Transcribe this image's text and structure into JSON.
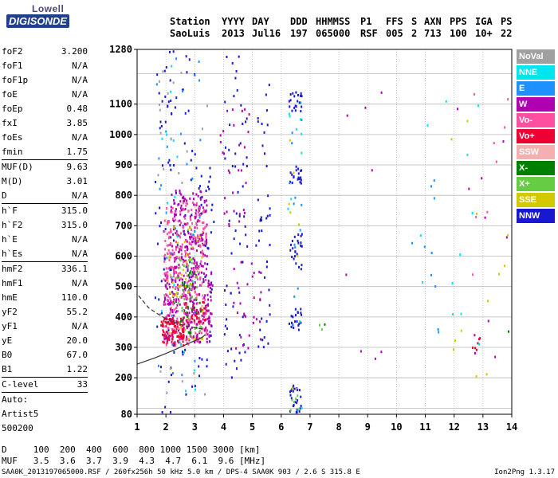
{
  "logo": {
    "brand": "Lowell",
    "product": "DIGISONDE"
  },
  "header": {
    "cols": [
      {
        "h": "Station",
        "v": "SaoLuis"
      },
      {
        "h": "YYYY",
        "v": "2013"
      },
      {
        "h": "DAY",
        "v": "Jul16"
      },
      {
        "h": "DDD",
        "v": "197"
      },
      {
        "h": "HHMMSS",
        "v": "065000"
      },
      {
        "h": "P1",
        "v": "RSF"
      },
      {
        "h": "FFS",
        "v": "005"
      },
      {
        "h": "S",
        "v": "2"
      },
      {
        "h": "AXN",
        "v": "713"
      },
      {
        "h": "PPS",
        "v": "100"
      },
      {
        "h": "IGA",
        "v": "10+"
      },
      {
        "h": "PS",
        "v": "22"
      }
    ]
  },
  "params": [
    {
      "label": "foF2",
      "value": "3.200"
    },
    {
      "label": "foF1",
      "value": "N/A"
    },
    {
      "label": "foF1p",
      "value": "N/A"
    },
    {
      "label": "foE",
      "value": "N/A"
    },
    {
      "label": "foEp",
      "value": "0.48"
    },
    {
      "label": "fxI",
      "value": "3.85"
    },
    {
      "label": "foEs",
      "value": "N/A"
    },
    {
      "label": "fmin",
      "value": "1.75"
    },
    {
      "sep": true
    },
    {
      "label": "MUF(D)",
      "value": "9.63"
    },
    {
      "label": "M(D)",
      "value": "3.01"
    },
    {
      "label": "D",
      "value": "N/A"
    },
    {
      "sep": true
    },
    {
      "label": "h`F",
      "value": "315.0"
    },
    {
      "label": "h`F2",
      "value": "315.0"
    },
    {
      "label": "h`E",
      "value": "N/A"
    },
    {
      "label": "h`Es",
      "value": "N/A"
    },
    {
      "sep": true
    },
    {
      "label": "hmF2",
      "value": "336.1"
    },
    {
      "label": "hmF1",
      "value": "N/A"
    },
    {
      "label": "hmE",
      "value": "110.0"
    },
    {
      "label": "yF2",
      "value": "55.2"
    },
    {
      "label": "yF1",
      "value": "N/A"
    },
    {
      "label": "yE",
      "value": "20.0"
    },
    {
      "label": "B0",
      "value": "67.0"
    },
    {
      "label": "B1",
      "value": "1.22"
    },
    {
      "sep": true
    },
    {
      "label": "C-level",
      "value": "33"
    },
    {
      "sep": true
    }
  ],
  "autoscaling": {
    "line1": "Auto:",
    "line2": "Artist5",
    "line3": "500200"
  },
  "legend": [
    {
      "label": "NoVal",
      "color": "#a0a0a0"
    },
    {
      "label": "NNE",
      "color": "#00e5ee"
    },
    {
      "label": "E",
      "color": "#1e90ff"
    },
    {
      "label": "W",
      "color": "#b000b0"
    },
    {
      "label": "Vo-",
      "color": "#ff4fa0"
    },
    {
      "label": "Vo+",
      "color": "#ee0033"
    },
    {
      "label": "SSW",
      "color": "#f4b0b0"
    },
    {
      "label": "X-",
      "color": "#008000"
    },
    {
      "label": "X+",
      "color": "#66cc44"
    },
    {
      "label": "SSE",
      "color": "#d6c800"
    },
    {
      "label": "NNW",
      "color": "#1818d0"
    }
  ],
  "muf_table": {
    "row1": "D     100  200  400  600  800 1000 1500 3000 [km]",
    "row2": "MUF   3.5  3.6  3.7  3.9  4.3  4.7  6.1  9.6 [MHz]"
  },
  "footer": {
    "left": "SAA0K_2013197065000.RSF / 260fx256h 50 kHz 5.0 km / DPS-4 SAA0K 903 / 2.6 S 315.8 E",
    "right": "Ion2Png 1.3.17"
  },
  "chart_data": {
    "type": "scatter",
    "title": "",
    "xlabel": "",
    "ylabel": "",
    "xlim": [
      1,
      14
    ],
    "ylim": [
      80,
      1280
    ],
    "xticks": [
      1,
      2,
      3,
      4,
      5,
      6,
      7,
      8,
      9,
      10,
      11,
      12,
      13,
      14
    ],
    "yticks": [
      80,
      200,
      300,
      400,
      500,
      600,
      700,
      800,
      900,
      1000,
      1100,
      1280
    ],
    "ygrid": [
      100,
      200,
      300,
      400,
      500,
      600,
      700,
      800,
      900,
      1000,
      1100,
      1200
    ],
    "grid": true,
    "legend_position": "right",
    "series": [
      {
        "name": "NNW",
        "kind": "cluster",
        "clusters": [
          {
            "x": [
              1.6,
              2.4
            ],
            "y": [
              80,
              1280
            ],
            "n": 70
          },
          {
            "x": [
              2.5,
              3.0
            ],
            "y": [
              140,
              1280
            ],
            "n": 40
          },
          {
            "x": [
              3.0,
              3.7
            ],
            "y": [
              180,
              900
            ],
            "n": 40
          },
          {
            "x": [
              4.0,
              4.8
            ],
            "y": [
              200,
              1280
            ],
            "n": 60
          },
          {
            "x": [
              5.1,
              5.6
            ],
            "y": [
              300,
              1200
            ],
            "n": 40
          },
          {
            "x": [
              6.25,
              6.7
            ],
            "y": [
              80,
              180
            ],
            "n": 25
          },
          {
            "x": [
              6.25,
              6.7
            ],
            "y": [
              360,
              430
            ],
            "n": 20
          },
          {
            "x": [
              6.25,
              6.7
            ],
            "y": [
              560,
              680
            ],
            "n": 25
          },
          {
            "x": [
              6.25,
              6.7
            ],
            "y": [
              840,
              900
            ],
            "n": 20
          },
          {
            "x": [
              6.25,
              6.7
            ],
            "y": [
              1080,
              1150
            ],
            "n": 20
          }
        ]
      },
      {
        "name": "W",
        "kind": "cluster",
        "clusters": [
          {
            "x": [
              1.9,
              3.6
            ],
            "y": [
              320,
              560
            ],
            "n": 260
          },
          {
            "x": [
              2.1,
              3.4
            ],
            "y": [
              560,
              820
            ],
            "n": 180
          },
          {
            "x": [
              3.8,
              4.9
            ],
            "y": [
              700,
              1100
            ],
            "n": 30
          },
          {
            "x": [
              4.3,
              5.3
            ],
            "y": [
              300,
              600
            ],
            "n": 30
          },
          {
            "x": [
              8.0,
              10.0
            ],
            "y": [
              250,
              1200
            ],
            "n": 8
          },
          {
            "x": [
              12.0,
              13.9
            ],
            "y": [
              250,
              1100
            ],
            "n": 10
          }
        ]
      },
      {
        "name": "Vo-",
        "kind": "cluster",
        "clusters": [
          {
            "x": [
              1.9,
              3.4
            ],
            "y": [
              310,
              780
            ],
            "n": 260
          },
          {
            "x": [
              12.5,
              13.9
            ],
            "y": [
              500,
              1150
            ],
            "n": 8
          }
        ]
      },
      {
        "name": "Vo+",
        "kind": "cluster",
        "clusters": [
          {
            "x": [
              1.8,
              2.6
            ],
            "y": [
              310,
              400
            ],
            "n": 90
          },
          {
            "x": [
              2.6,
              3.4
            ],
            "y": [
              380,
              460
            ],
            "n": 30
          },
          {
            "x": [
              12.6,
              12.9
            ],
            "y": [
              280,
              340
            ],
            "n": 6
          }
        ]
      },
      {
        "name": "E",
        "kind": "cluster",
        "clusters": [
          {
            "x": [
              1.6,
              3.2
            ],
            "y": [
              90,
              1280
            ],
            "n": 30
          },
          {
            "x": [
              6.25,
              6.7
            ],
            "y": [
              80,
              1150
            ],
            "n": 15
          },
          {
            "x": [
              10.5,
              11.5
            ],
            "y": [
              300,
              1000
            ],
            "n": 10
          }
        ]
      },
      {
        "name": "NNE",
        "kind": "cluster",
        "clusters": [
          {
            "x": [
              1.8,
              3.0
            ],
            "y": [
              100,
              1280
            ],
            "n": 20
          },
          {
            "x": [
              6.2,
              6.7
            ],
            "y": [
              100,
              1150
            ],
            "n": 10
          },
          {
            "x": [
              10.8,
              12.9
            ],
            "y": [
              300,
              1150
            ],
            "n": 12
          }
        ]
      },
      {
        "name": "X+",
        "kind": "cluster",
        "clusters": [
          {
            "x": [
              2.2,
              3.2
            ],
            "y": [
              330,
              600
            ],
            "n": 40
          },
          {
            "x": [
              6.3,
              6.6
            ],
            "y": [
              90,
              160
            ],
            "n": 6
          },
          {
            "x": [
              7.3,
              7.6
            ],
            "y": [
              360,
              400
            ],
            "n": 2
          }
        ]
      },
      {
        "name": "SSE",
        "kind": "cluster",
        "clusters": [
          {
            "x": [
              2.0,
              3.3
            ],
            "y": [
              330,
              700
            ],
            "n": 40
          },
          {
            "x": [
              6.2,
              6.7
            ],
            "y": [
              90,
              1100
            ],
            "n": 8
          },
          {
            "x": [
              11.5,
              13.9
            ],
            "y": [
              150,
              1280
            ],
            "n": 12
          }
        ]
      },
      {
        "name": "X-",
        "kind": "cluster",
        "clusters": [
          {
            "x": [
              2.3,
              3.2
            ],
            "y": [
              350,
              560
            ],
            "n": 25
          },
          {
            "x": [
              7.3,
              7.5
            ],
            "y": [
              370,
              380
            ],
            "n": 1
          },
          {
            "x": [
              13.8,
              13.9
            ],
            "y": [
              350,
              360
            ],
            "n": 1
          }
        ]
      },
      {
        "name": "NoVal",
        "kind": "cluster",
        "clusters": [
          {
            "x": [
              1.7,
              3.5
            ],
            "y": [
              80,
              1280
            ],
            "n": 30
          }
        ]
      }
    ],
    "profile_lines": [
      {
        "name": "trace",
        "style": "solid",
        "x": [
          1.0,
          1.6,
          2.0,
          2.3,
          2.6,
          2.9,
          3.2,
          3.35
        ],
        "y": [
          245,
          265,
          280,
          292,
          305,
          318,
          330,
          340
        ]
      },
      {
        "name": "profile",
        "style": "dashed",
        "x": [
          1.05,
          1.4,
          1.8,
          2.2,
          2.7,
          3.3
        ],
        "y": [
          470,
          430,
          405,
          385,
          370,
          360
        ]
      }
    ]
  }
}
